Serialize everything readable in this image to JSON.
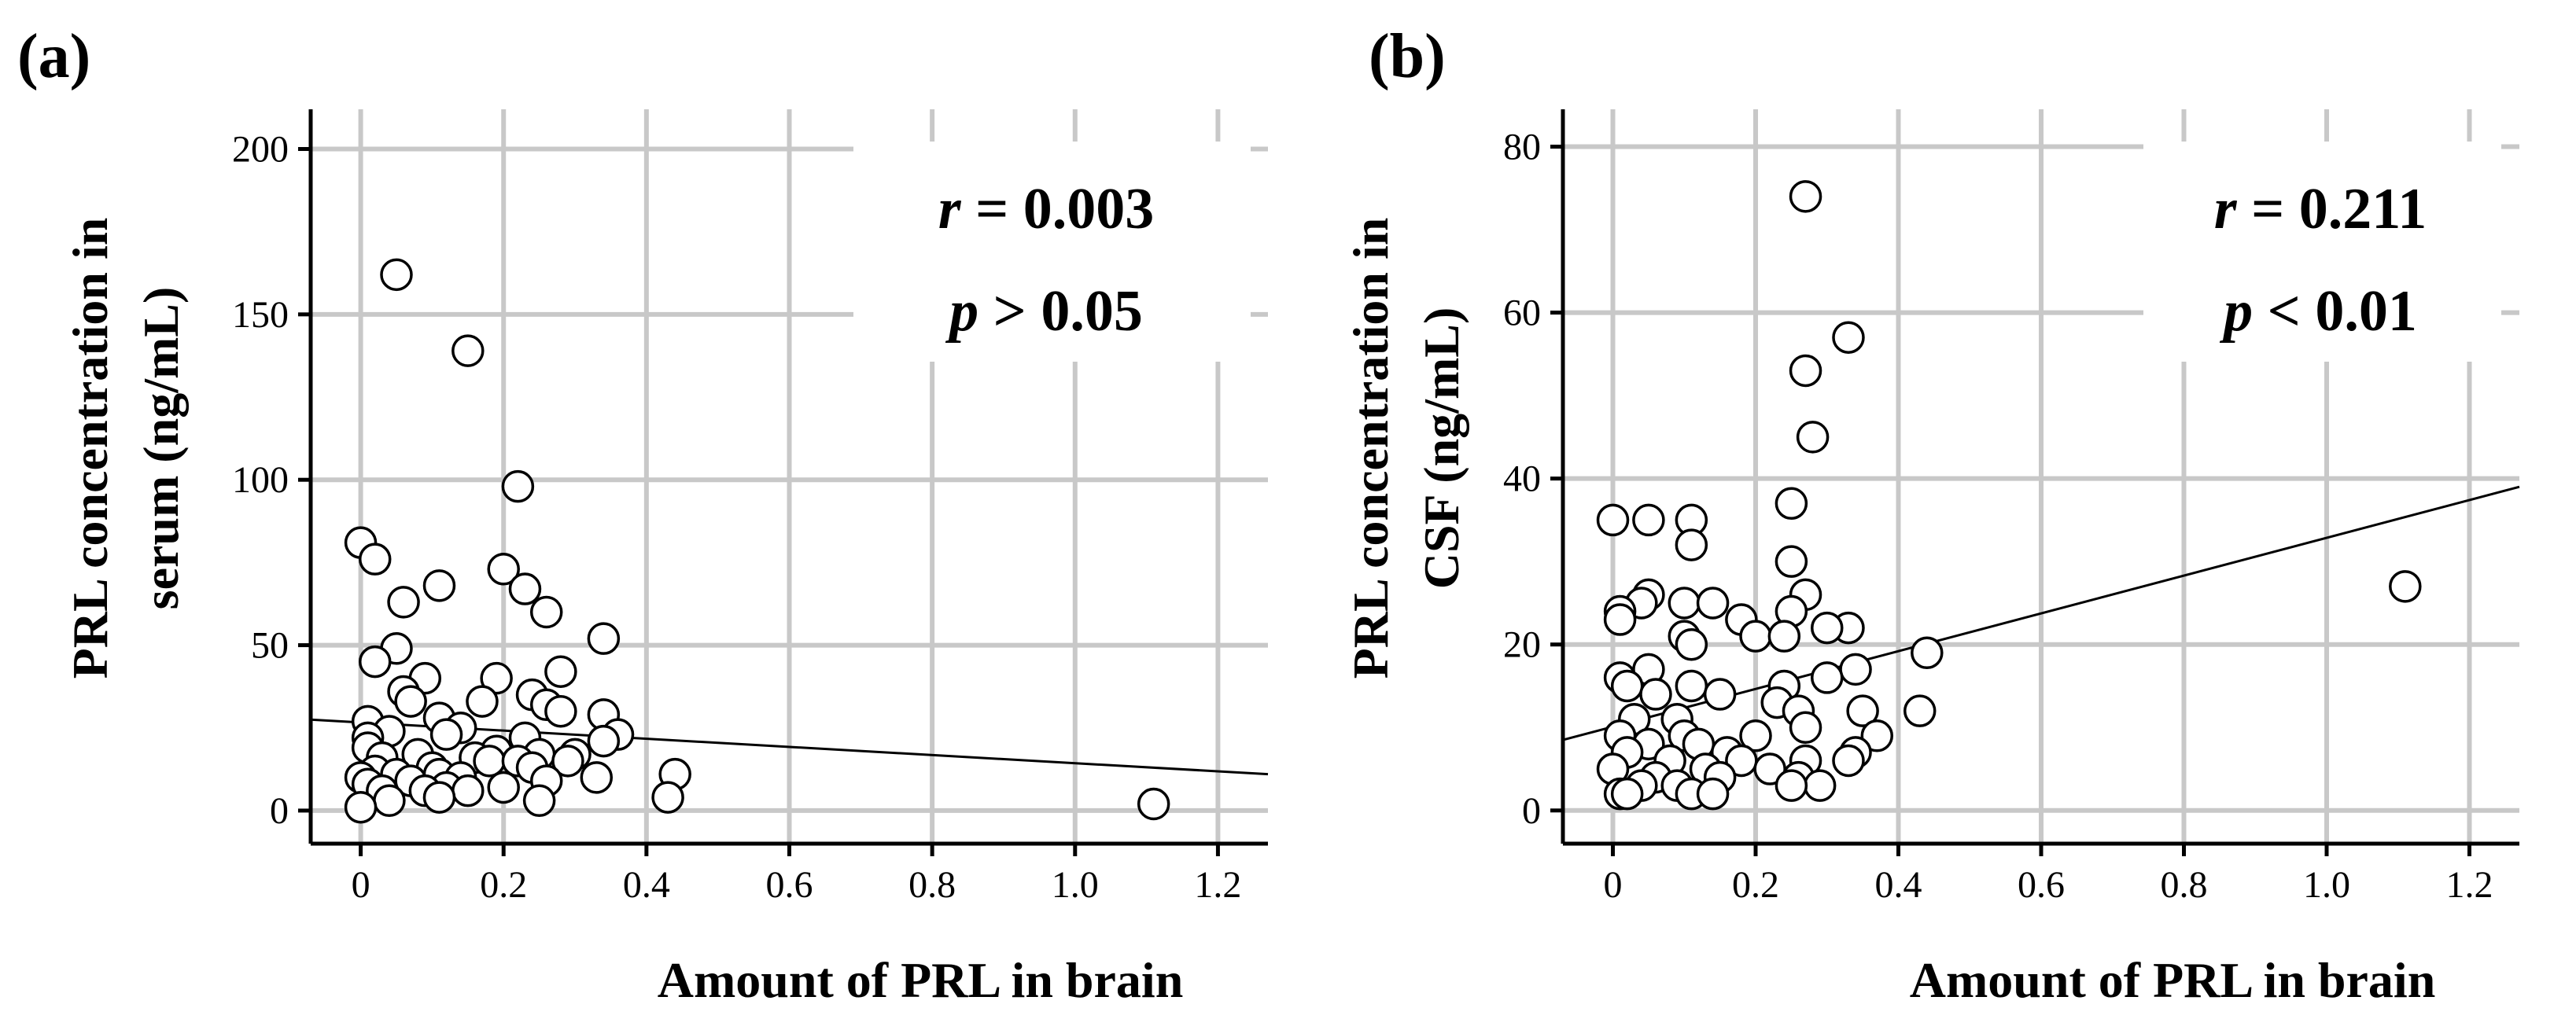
{
  "chart_data": [
    {
      "type": "scatter",
      "panel_label": "(a)",
      "xlabel": "Amount of PRL in brain",
      "ylabel_lines": [
        "PRL concentration in",
        "serum (ng/mL)"
      ],
      "xlim": [
        -0.07,
        1.27
      ],
      "ylim": [
        -10,
        212
      ],
      "xticks": [
        0,
        0.2,
        0.4,
        0.6,
        0.8,
        1.0,
        1.2
      ],
      "xtick_labels": [
        "0",
        "0.2",
        "0.4",
        "0.6",
        "0.8",
        "1.0",
        "1.2"
      ],
      "yticks": [
        0,
        50,
        100,
        150,
        200
      ],
      "ytick_labels": [
        "0",
        "50",
        "100",
        "150",
        "200"
      ],
      "grid": true,
      "annotation": {
        "r_symbol": "r",
        "r_text": " = 0.003",
        "p_symbol": "p",
        "p_text": " > 0.05",
        "position": "top-right"
      },
      "fit_line": {
        "x": [
          -0.07,
          1.27
        ],
        "y": [
          27.5,
          11
        ]
      },
      "points": [
        [
          0.05,
          162
        ],
        [
          0.15,
          139
        ],
        [
          0.22,
          98
        ],
        [
          0.0,
          81
        ],
        [
          0.02,
          76
        ],
        [
          0.11,
          68
        ],
        [
          0.2,
          73
        ],
        [
          0.23,
          67
        ],
        [
          0.06,
          63
        ],
        [
          0.26,
          60
        ],
        [
          0.34,
          52
        ],
        [
          0.05,
          49
        ],
        [
          0.02,
          45
        ],
        [
          0.28,
          42
        ],
        [
          0.09,
          40
        ],
        [
          0.19,
          40
        ],
        [
          0.06,
          36
        ],
        [
          0.24,
          35
        ],
        [
          0.17,
          33
        ],
        [
          0.07,
          33
        ],
        [
          0.26,
          32
        ],
        [
          0.28,
          30
        ],
        [
          0.34,
          29
        ],
        [
          0.11,
          28
        ],
        [
          0.01,
          27
        ],
        [
          0.14,
          25
        ],
        [
          0.04,
          24
        ],
        [
          0.36,
          23
        ],
        [
          0.12,
          23
        ],
        [
          0.01,
          22
        ],
        [
          0.23,
          22
        ],
        [
          0.34,
          21
        ],
        [
          0.01,
          19
        ],
        [
          0.19,
          18
        ],
        [
          0.25,
          17
        ],
        [
          0.3,
          17
        ],
        [
          0.08,
          17
        ],
        [
          0.03,
          16
        ],
        [
          0.16,
          16
        ],
        [
          0.29,
          15
        ],
        [
          0.18,
          15
        ],
        [
          0.22,
          15
        ],
        [
          0.24,
          13
        ],
        [
          0.1,
          13
        ],
        [
          0.02,
          12
        ],
        [
          0.05,
          11
        ],
        [
          0.11,
          11
        ],
        [
          0.44,
          11
        ],
        [
          0.14,
          10
        ],
        [
          0.0,
          10
        ],
        [
          0.33,
          10
        ],
        [
          0.26,
          9
        ],
        [
          0.07,
          9
        ],
        [
          0.01,
          8
        ],
        [
          0.12,
          7
        ],
        [
          0.03,
          6
        ],
        [
          0.15,
          6
        ],
        [
          0.09,
          6
        ],
        [
          0.2,
          7
        ],
        [
          0.43,
          4
        ],
        [
          0.11,
          4
        ],
        [
          0.25,
          3
        ],
        [
          0.04,
          3
        ],
        [
          0.0,
          1
        ],
        [
          1.11,
          2
        ]
      ]
    },
    {
      "type": "scatter",
      "panel_label": "(b)",
      "xlabel": "Amount of PRL in brain",
      "ylabel_lines": [
        "PRL concentration in",
        "CSF (ng/mL)"
      ],
      "xlim": [
        -0.07,
        1.27
      ],
      "ylim": [
        -4,
        84.5
      ],
      "xticks": [
        0,
        0.2,
        0.4,
        0.6,
        0.8,
        1.0,
        1.2
      ],
      "xtick_labels": [
        "0",
        "0.2",
        "0.4",
        "0.6",
        "0.8",
        "1.0",
        "1.2"
      ],
      "yticks": [
        0,
        20,
        40,
        60,
        80
      ],
      "ytick_labels": [
        "0",
        "20",
        "40",
        "60",
        "80"
      ],
      "grid": true,
      "annotation": {
        "r_symbol": "r",
        "r_text": " = 0.211",
        "p_symbol": "p",
        "p_text": " < 0.01",
        "position": "top-right"
      },
      "fit_line": {
        "x": [
          -0.07,
          1.27
        ],
        "y": [
          8.5,
          39
        ]
      },
      "points": [
        [
          0.27,
          74
        ],
        [
          0.33,
          57
        ],
        [
          0.27,
          53
        ],
        [
          0.28,
          45
        ],
        [
          0.25,
          37
        ],
        [
          0.11,
          35
        ],
        [
          0.0,
          35
        ],
        [
          0.05,
          35
        ],
        [
          0.11,
          32
        ],
        [
          0.25,
          30
        ],
        [
          1.11,
          27
        ],
        [
          0.05,
          26
        ],
        [
          0.27,
          26
        ],
        [
          0.1,
          25
        ],
        [
          0.14,
          25
        ],
        [
          0.04,
          25
        ],
        [
          0.01,
          24
        ],
        [
          0.25,
          24
        ],
        [
          0.18,
          23
        ],
        [
          0.01,
          23
        ],
        [
          0.33,
          22
        ],
        [
          0.3,
          22
        ],
        [
          0.2,
          21
        ],
        [
          0.24,
          21
        ],
        [
          0.1,
          21
        ],
        [
          0.11,
          20
        ],
        [
          0.44,
          19
        ],
        [
          0.01,
          16
        ],
        [
          0.34,
          17
        ],
        [
          0.05,
          17
        ],
        [
          0.3,
          16
        ],
        [
          0.11,
          15
        ],
        [
          0.02,
          15
        ],
        [
          0.24,
          15
        ],
        [
          0.06,
          14
        ],
        [
          0.15,
          14
        ],
        [
          0.23,
          13
        ],
        [
          0.26,
          12
        ],
        [
          0.35,
          12
        ],
        [
          0.43,
          12
        ],
        [
          0.03,
          11
        ],
        [
          0.09,
          11
        ],
        [
          0.27,
          10
        ],
        [
          0.1,
          9
        ],
        [
          0.37,
          9
        ],
        [
          0.2,
          9
        ],
        [
          0.01,
          9
        ],
        [
          0.05,
          8
        ],
        [
          0.12,
          8
        ],
        [
          0.16,
          7
        ],
        [
          0.34,
          7
        ],
        [
          0.02,
          7
        ],
        [
          0.08,
          6
        ],
        [
          0.18,
          6
        ],
        [
          0.27,
          6
        ],
        [
          0.33,
          6
        ],
        [
          0.13,
          5
        ],
        [
          0.0,
          5
        ],
        [
          0.22,
          5
        ],
        [
          0.26,
          4
        ],
        [
          0.06,
          4
        ],
        [
          0.15,
          4
        ],
        [
          0.29,
          3
        ],
        [
          0.09,
          3
        ],
        [
          0.04,
          3
        ],
        [
          0.25,
          3
        ],
        [
          0.01,
          2
        ],
        [
          0.11,
          2
        ],
        [
          0.14,
          2
        ],
        [
          0.02,
          2
        ]
      ]
    }
  ]
}
